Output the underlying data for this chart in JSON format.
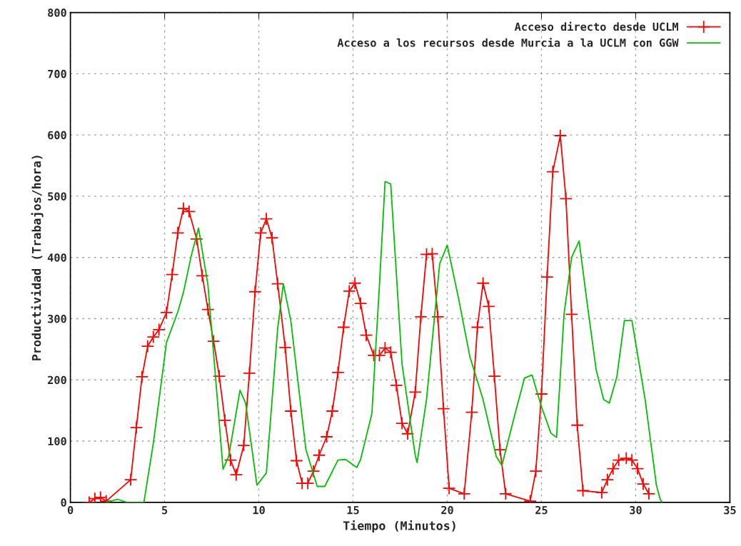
{
  "chart_data": {
    "type": "line",
    "xlabel": "Tiempo (Minutos)",
    "ylabel": "Productividad (Trabajos/hora)",
    "xlim": [
      0,
      35
    ],
    "xticks": [
      0,
      5,
      10,
      15,
      20,
      25,
      30,
      35
    ],
    "ylim": [
      0,
      800
    ],
    "yticks": [
      0,
      100,
      200,
      300,
      400,
      500,
      600,
      700,
      800
    ],
    "grid": true,
    "legend": "top right",
    "series": [
      {
        "name": "Acceso directo desde UCLM",
        "color": "#ff0000",
        "marker": "cross",
        "x": [
          1.0,
          1.3,
          1.6,
          1.9,
          3.2,
          3.5,
          3.8,
          4.1,
          4.4,
          4.7,
          5.1,
          5.4,
          5.7,
          6.0,
          6.3,
          6.7,
          7.0,
          7.3,
          7.6,
          7.9,
          8.2,
          8.5,
          8.8,
          9.2,
          9.5,
          9.8,
          10.1,
          10.4,
          10.7,
          11.0,
          11.4,
          11.7,
          12.0,
          12.3,
          12.6,
          12.9,
          13.2,
          13.6,
          13.9,
          14.2,
          14.5,
          14.8,
          15.1,
          15.4,
          15.7,
          16.1,
          16.4,
          16.7,
          17.0,
          17.3,
          17.6,
          17.9,
          18.3,
          18.6,
          18.9,
          19.2,
          19.5,
          19.8,
          20.1,
          20.9,
          21.3,
          21.6,
          21.9,
          22.2,
          22.5,
          22.8,
          23.1,
          24.4,
          24.7,
          25.0,
          25.3,
          25.6,
          26.0,
          26.3,
          26.6,
          26.9,
          27.2,
          28.2,
          28.5,
          28.8,
          29.1,
          29.5,
          29.8,
          30.1,
          30.4,
          30.7
        ],
        "values": [
          0,
          6,
          8,
          2,
          37,
          122,
          205,
          255,
          270,
          282,
          310,
          372,
          440,
          480,
          475,
          430,
          370,
          315,
          263,
          206,
          134,
          69,
          45,
          93,
          211,
          344,
          440,
          463,
          432,
          357,
          253,
          149,
          68,
          31,
          31,
          51,
          77,
          107,
          149,
          212,
          286,
          345,
          358,
          325,
          273,
          240,
          240,
          252,
          245,
          191,
          129,
          112,
          180,
          303,
          405,
          406,
          303,
          153,
          23,
          14,
          147,
          286,
          358,
          320,
          206,
          86,
          14,
          2,
          51,
          177,
          368,
          540,
          599,
          496,
          307,
          126,
          19,
          16,
          37,
          55,
          69,
          72,
          69,
          55,
          30,
          14
        ]
      },
      {
        "name": "Acceso a los recursos desde Murcia a la UCLM con GGW",
        "color": "#00c000",
        "marker": "none",
        "x": [
          1.9,
          2.5,
          3.0,
          3.9,
          4.4,
          5.1,
          5.7,
          6.0,
          6.4,
          6.8,
          7.3,
          7.8,
          8.1,
          8.4,
          9.0,
          9.3,
          9.9,
          10.4,
          11.0,
          11.3,
          11.7,
          12.5,
          13.1,
          13.5,
          14.2,
          14.6,
          15.2,
          15.4,
          16.0,
          16.4,
          16.7,
          17.0,
          17.6,
          18.3,
          18.4,
          18.9,
          19.6,
          20.0,
          20.6,
          21.2,
          21.9,
          22.6,
          22.9,
          23.6,
          24.1,
          24.5,
          25.0,
          25.5,
          25.8,
          26.2,
          26.6,
          27.0,
          27.4,
          27.9,
          28.3,
          28.6,
          29.0,
          29.4,
          29.8,
          30.5,
          31.1,
          31.3,
          31.4
        ],
        "values": [
          0,
          5,
          0,
          0,
          96,
          261,
          311,
          343,
          401,
          448,
          355,
          168,
          54,
          75,
          183,
          162,
          28,
          48,
          284,
          357,
          296,
          86,
          26,
          26,
          69,
          70,
          57,
          70,
          145,
          354,
          524,
          520,
          226,
          77,
          65,
          168,
          390,
          420,
          333,
          238,
          168,
          75,
          60,
          145,
          203,
          208,
          156,
          113,
          106,
          308,
          400,
          427,
          331,
          217,
          168,
          162,
          205,
          297,
          297,
          168,
          28,
          5,
          0
        ]
      }
    ]
  }
}
